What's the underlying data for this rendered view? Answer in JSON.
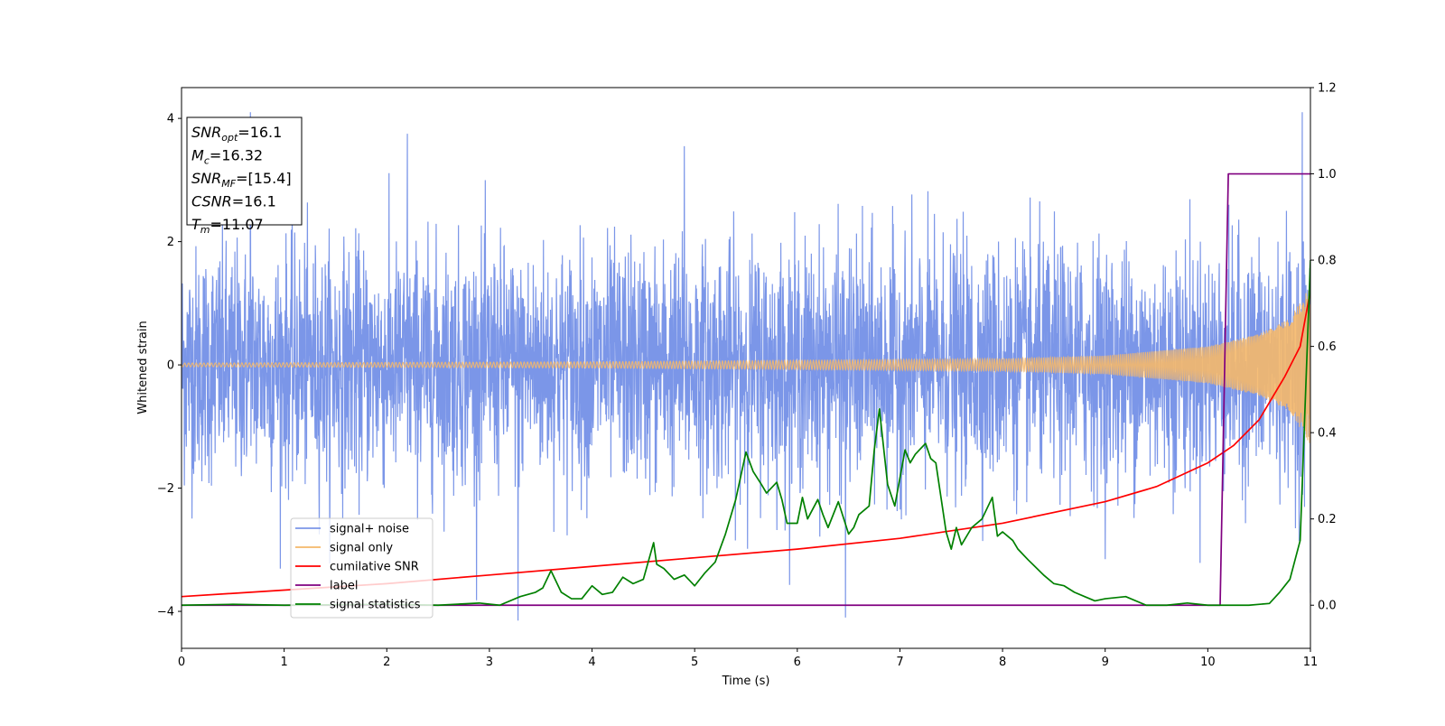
{
  "chart_data": {
    "type": "line",
    "xlabel": "Time (s)",
    "ylabel": "Whitened strain",
    "xlim": [
      0,
      11
    ],
    "ylim_left": [
      -4.6,
      4.5
    ],
    "ylim_right": [
      -0.1,
      1.2
    ],
    "xticks": [
      "0",
      "1",
      "2",
      "3",
      "4",
      "5",
      "6",
      "7",
      "8",
      "9",
      "10",
      "11"
    ],
    "yticks_left": [
      "-4",
      "-2",
      "0",
      "2",
      "4"
    ],
    "yticks_right": [
      "0.0",
      "0.2",
      "0.4",
      "0.6",
      "0.8",
      "1.0",
      "1.2"
    ],
    "legend_position": "lower-left",
    "annotations": [
      {
        "name": "SNR",
        "sub": "opt",
        "value": "=16.1"
      },
      {
        "name": "M",
        "sub": "c",
        "value": "=16.32"
      },
      {
        "name": "SNR",
        "sub": "MF",
        "value": "=[15.4]"
      },
      {
        "name": "CSNR",
        "sub": "",
        "value": "=16.1"
      },
      {
        "name": "T",
        "sub": "m",
        "value": "=11.07"
      }
    ],
    "series": [
      {
        "name": "signal+ noise",
        "axis": "left",
        "color": "#7b96e8",
        "description_level": "Gaussian-like noise, std ~1, with occasional spikes up to ~4",
        "spikes": [
          [
            0.67,
            4.1
          ],
          [
            2.2,
            3.75
          ],
          [
            3.28,
            -4.15
          ],
          [
            4.9,
            3.55
          ],
          [
            6.47,
            -4.1
          ],
          [
            10.92,
            4.1
          ],
          [
            11.0,
            -3.7
          ]
        ]
      },
      {
        "name": "signal only",
        "axis": "left",
        "color": "#f5b86a",
        "envelope": {
          "x": [
            0,
            4,
            8,
            9,
            10,
            10.5,
            10.8,
            11
          ],
          "y": [
            0.03,
            0.05,
            0.1,
            0.15,
            0.3,
            0.5,
            0.75,
            1.3
          ]
        }
      },
      {
        "name": "cumilative SNR",
        "axis": "right",
        "color": "#ff0000",
        "x": [
          0,
          1,
          2,
          3,
          4,
          5,
          6,
          7,
          8,
          9,
          9.5,
          10,
          10.25,
          10.5,
          10.75,
          10.9,
          11
        ],
        "y": [
          0.02,
          0.035,
          0.05,
          0.07,
          0.09,
          0.11,
          0.13,
          0.155,
          0.19,
          0.24,
          0.275,
          0.33,
          0.37,
          0.43,
          0.53,
          0.6,
          0.73
        ]
      },
      {
        "name": "label",
        "axis": "right",
        "color": "#800080",
        "x": [
          0,
          10.12,
          10.2,
          11
        ],
        "y": [
          0,
          0,
          1,
          1
        ]
      },
      {
        "name": "signal statistics",
        "axis": "right",
        "color": "#008000",
        "x": [
          0,
          0.5,
          1,
          1.5,
          2,
          2.5,
          2.9,
          3.1,
          3.3,
          3.45,
          3.52,
          3.6,
          3.7,
          3.8,
          3.9,
          4.0,
          4.1,
          4.2,
          4.3,
          4.4,
          4.5,
          4.6,
          4.63,
          4.7,
          4.8,
          4.9,
          5.0,
          5.1,
          5.2,
          5.3,
          5.4,
          5.5,
          5.57,
          5.65,
          5.7,
          5.8,
          5.85,
          5.9,
          6.0,
          6.05,
          6.1,
          6.2,
          6.25,
          6.3,
          6.4,
          6.5,
          6.55,
          6.6,
          6.7,
          6.75,
          6.8,
          6.88,
          6.95,
          7.05,
          7.1,
          7.15,
          7.25,
          7.3,
          7.35,
          7.45,
          7.5,
          7.55,
          7.6,
          7.7,
          7.8,
          7.9,
          7.95,
          8.0,
          8.1,
          8.15,
          8.25,
          8.4,
          8.5,
          8.6,
          8.7,
          8.8,
          8.9,
          9.0,
          9.2,
          9.4,
          9.6,
          9.8,
          10.0,
          10.2,
          10.4,
          10.6,
          10.7,
          10.8,
          10.9,
          11.0
        ],
        "y": [
          0.0,
          0.002,
          0.0,
          0.001,
          0.002,
          0.0,
          0.005,
          0.0,
          0.02,
          0.03,
          0.04,
          0.08,
          0.03,
          0.015,
          0.015,
          0.045,
          0.025,
          0.03,
          0.065,
          0.05,
          0.06,
          0.145,
          0.095,
          0.085,
          0.06,
          0.07,
          0.045,
          0.075,
          0.1,
          0.165,
          0.245,
          0.355,
          0.31,
          0.28,
          0.26,
          0.285,
          0.245,
          0.19,
          0.19,
          0.25,
          0.2,
          0.245,
          0.21,
          0.18,
          0.24,
          0.165,
          0.18,
          0.21,
          0.23,
          0.36,
          0.455,
          0.28,
          0.23,
          0.36,
          0.33,
          0.35,
          0.375,
          0.34,
          0.33,
          0.17,
          0.13,
          0.18,
          0.14,
          0.18,
          0.2,
          0.25,
          0.16,
          0.17,
          0.15,
          0.13,
          0.105,
          0.07,
          0.05,
          0.045,
          0.03,
          0.02,
          0.01,
          0.015,
          0.02,
          0.0,
          0.0,
          0.005,
          0.0,
          0.0,
          0.0,
          0.004,
          0.03,
          0.06,
          0.15,
          0.8
        ]
      }
    ]
  }
}
